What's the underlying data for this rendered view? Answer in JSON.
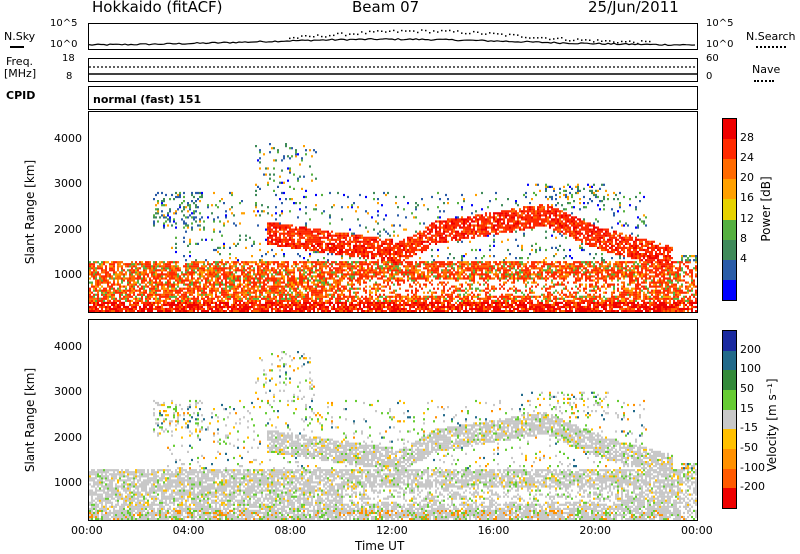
{
  "header": {
    "station": "Hokkaido (fitACF)",
    "beam": "Beam 07",
    "date": "25/Jun/2011"
  },
  "top_panels": {
    "nsky_label": "N.Sky",
    "nsearch_label": "N.Search",
    "nsky_ticks": [
      "10^5",
      "10^0"
    ],
    "nsearch_ticks": [
      "10^5",
      "10^0"
    ],
    "freq_label": "Freq.",
    "freq_unit": "[MHz]",
    "freq_ticks": [
      "18",
      "8"
    ],
    "nave_label": "Nave",
    "nave_ticks": [
      "60",
      "0"
    ],
    "cpid_label": "CPID",
    "cpid_text": "normal (fast) 151"
  },
  "colors": {
    "power": [
      "#0000ff",
      "#2a5ca8",
      "#3f8a5a",
      "#55b040",
      "#e6d200",
      "#ffa000",
      "#ff6a00",
      "#ff2a00",
      "#ee0000"
    ],
    "velocity": [
      "#ee0000",
      "#ff5a00",
      "#ff9000",
      "#ffc000",
      "#c8c8c8",
      "#66cc33",
      "#338a3a",
      "#226a8a",
      "#1a2aa0"
    ]
  },
  "chart_data": [
    {
      "type": "heatmap",
      "title": "Power",
      "ylabel": "Slant Range [km]",
      "xlabel": "",
      "x_ticks": [
        "00:00",
        "04:00",
        "08:00",
        "12:00",
        "16:00",
        "20:00",
        "00:00"
      ],
      "y_ticks": [
        "1000",
        "2000",
        "3000",
        "4000"
      ],
      "ylim": [
        180,
        4600
      ],
      "xlim_hours": [
        0,
        24
      ],
      "colorbar_label": "Power [dB]",
      "colorbar_ticks": [
        "28",
        "24",
        "20",
        "16",
        "12",
        "8",
        "4"
      ]
    },
    {
      "type": "heatmap",
      "title": "Velocity",
      "ylabel": "Slant Range [km]",
      "xlabel": "Time UT",
      "x_ticks": [
        "00:00",
        "04:00",
        "08:00",
        "12:00",
        "16:00",
        "20:00",
        "00:00"
      ],
      "y_ticks": [
        "1000",
        "2000",
        "3000",
        "4000"
      ],
      "ylim": [
        180,
        4600
      ],
      "xlim_hours": [
        0,
        24
      ],
      "colorbar_label": "Velocity [m s⁻¹]",
      "colorbar_ticks": [
        "200",
        "100",
        "50",
        "15",
        "-15",
        "-50",
        "-100",
        "-200"
      ]
    }
  ]
}
